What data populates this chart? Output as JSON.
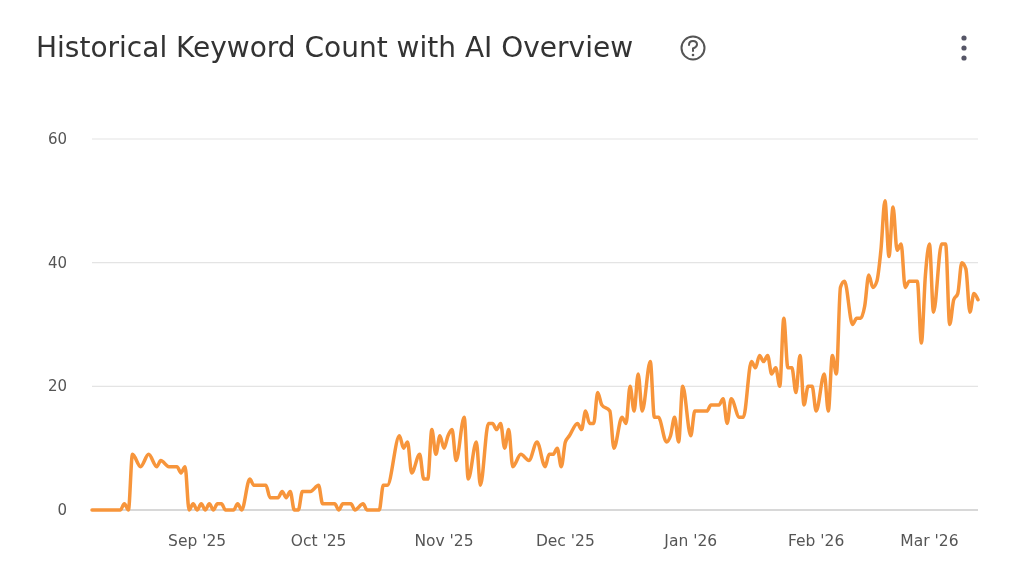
{
  "chart_data": {
    "type": "line",
    "title": "Historical Keyword Count with AI Overview",
    "x": [
      "2025-08-06",
      "2025-08-13",
      "2025-08-14",
      "2025-08-15",
      "2025-08-16",
      "2025-08-18",
      "2025-08-20",
      "2025-08-22",
      "2025-08-23",
      "2025-08-25",
      "2025-08-27",
      "2025-08-28",
      "2025-08-29",
      "2025-08-30",
      "2025-08-31",
      "2025-09-01",
      "2025-09-02",
      "2025-09-03",
      "2025-09-04",
      "2025-09-05",
      "2025-09-06",
      "2025-09-07",
      "2025-09-08",
      "2025-09-10",
      "2025-09-11",
      "2025-09-12",
      "2025-09-14",
      "2025-09-15",
      "2025-09-16",
      "2025-09-18",
      "2025-09-19",
      "2025-09-21",
      "2025-09-22",
      "2025-09-23",
      "2025-09-24",
      "2025-09-25",
      "2025-09-26",
      "2025-09-27",
      "2025-09-29",
      "2025-10-01",
      "2025-10-02",
      "2025-10-05",
      "2025-10-06",
      "2025-10-07",
      "2025-10-09",
      "2025-10-10",
      "2025-10-12",
      "2025-10-13",
      "2025-10-15",
      "2025-10-16",
      "2025-10-17",
      "2025-10-18",
      "2025-10-21",
      "2025-10-22",
      "2025-10-23",
      "2025-10-24",
      "2025-10-26",
      "2025-10-27",
      "2025-10-28",
      "2025-10-29",
      "2025-10-30",
      "2025-10-31",
      "2025-11-01",
      "2025-11-02",
      "2025-11-03",
      "2025-11-04",
      "2025-11-06",
      "2025-11-07",
      "2025-11-09",
      "2025-11-10",
      "2025-11-12",
      "2025-11-13",
      "2025-11-14",
      "2025-11-15",
      "2025-11-16",
      "2025-11-17",
      "2025-11-18",
      "2025-11-20",
      "2025-11-22",
      "2025-11-24",
      "2025-11-26",
      "2025-11-27",
      "2025-11-28",
      "2025-11-29",
      "2025-11-30",
      "2025-12-01",
      "2025-12-02",
      "2025-12-04",
      "2025-12-05",
      "2025-12-06",
      "2025-12-07",
      "2025-12-08",
      "2025-12-09",
      "2025-12-10",
      "2025-12-12",
      "2025-12-13",
      "2025-12-15",
      "2025-12-16",
      "2025-12-17",
      "2025-12-18",
      "2025-12-19",
      "2025-12-20",
      "2025-12-22",
      "2025-12-23",
      "2025-12-24",
      "2025-12-26",
      "2025-12-27",
      "2025-12-28",
      "2025-12-29",
      "2025-12-30",
      "2026-01-01",
      "2026-01-02",
      "2026-01-03",
      "2026-01-05",
      "2026-01-06",
      "2026-01-08",
      "2026-01-09",
      "2026-01-10",
      "2026-01-11",
      "2026-01-13",
      "2026-01-14",
      "2026-01-16",
      "2026-01-17",
      "2026-01-18",
      "2026-01-19",
      "2026-01-20",
      "2026-01-21",
      "2026-01-22",
      "2026-01-23",
      "2026-01-24",
      "2026-01-25",
      "2026-01-26",
      "2026-01-27",
      "2026-01-28",
      "2026-01-29",
      "2026-01-30",
      "2026-01-31",
      "2026-02-01",
      "2026-02-03",
      "2026-02-04",
      "2026-02-05",
      "2026-02-06",
      "2026-02-07",
      "2026-02-08",
      "2026-02-10",
      "2026-02-11",
      "2026-02-12",
      "2026-02-13",
      "2026-02-14",
      "2026-02-15",
      "2026-02-16",
      "2026-02-17",
      "2026-02-18",
      "2026-02-19",
      "2026-02-20",
      "2026-02-21",
      "2026-02-22",
      "2026-02-23",
      "2026-02-24",
      "2026-02-26",
      "2026-02-27",
      "2026-02-28",
      "2026-03-01",
      "2026-03-02",
      "2026-03-04",
      "2026-03-05",
      "2026-03-06",
      "2026-03-07",
      "2026-03-08",
      "2026-03-09",
      "2026-03-10",
      "2026-03-11",
      "2026-03-12",
      "2026-03-13"
    ],
    "series": [
      {
        "color": "#f7953b",
        "values": [
          0,
          0,
          1,
          0,
          9,
          7,
          9,
          7,
          8,
          7,
          7,
          6,
          7,
          0,
          1,
          0,
          1,
          0,
          1,
          0,
          1,
          1,
          0,
          0,
          1,
          0,
          5,
          4,
          4,
          4,
          2,
          2,
          3,
          2,
          3,
          0,
          0,
          3,
          3,
          4,
          1,
          1,
          0,
          1,
          1,
          0,
          1,
          0,
          0,
          0,
          4,
          4,
          12,
          10,
          11,
          6,
          9,
          5,
          5,
          13,
          9,
          12,
          10,
          12,
          13,
          8,
          15,
          5,
          11,
          4,
          14,
          14,
          13,
          14,
          10,
          13,
          7,
          9,
          8,
          11,
          7,
          9,
          9,
          10,
          7,
          11,
          12,
          14,
          13,
          16,
          14,
          14,
          19,
          17,
          16,
          10,
          15,
          14,
          20,
          16,
          22,
          16,
          24,
          15,
          15,
          11,
          12,
          15,
          11,
          20,
          12,
          16,
          16,
          16,
          17,
          17,
          18,
          14,
          18,
          15,
          15,
          24,
          23,
          25,
          24,
          25,
          22,
          23,
          20,
          31,
          23,
          23,
          19,
          25,
          17,
          20,
          20,
          16,
          22,
          16,
          25,
          22,
          36,
          37,
          30,
          31,
          31,
          33,
          38,
          36,
          37,
          42,
          50,
          41,
          49,
          42,
          43,
          36,
          37,
          37,
          27,
          38,
          43,
          32,
          43,
          43,
          30,
          34,
          35,
          40,
          39,
          32,
          35,
          34
        ]
      }
    ],
    "xlim": [
      "2025-08-06",
      "2026-03-13"
    ],
    "xticks": [
      {
        "value": "2025-09-01",
        "label": "Sep '25"
      },
      {
        "value": "2025-10-01",
        "label": "Oct '25"
      },
      {
        "value": "2025-11-01",
        "label": "Nov '25"
      },
      {
        "value": "2025-12-01",
        "label": "Dec '25"
      },
      {
        "value": "2026-01-01",
        "label": "Jan '26"
      },
      {
        "value": "2026-02-01",
        "label": "Feb '26"
      },
      {
        "value": "2026-03-01",
        "label": "Mar '26"
      }
    ],
    "ylim": [
      0,
      60
    ],
    "yticks": [
      0,
      20,
      40,
      60
    ],
    "grid": "y",
    "marker": "none",
    "line_style": "solid"
  }
}
